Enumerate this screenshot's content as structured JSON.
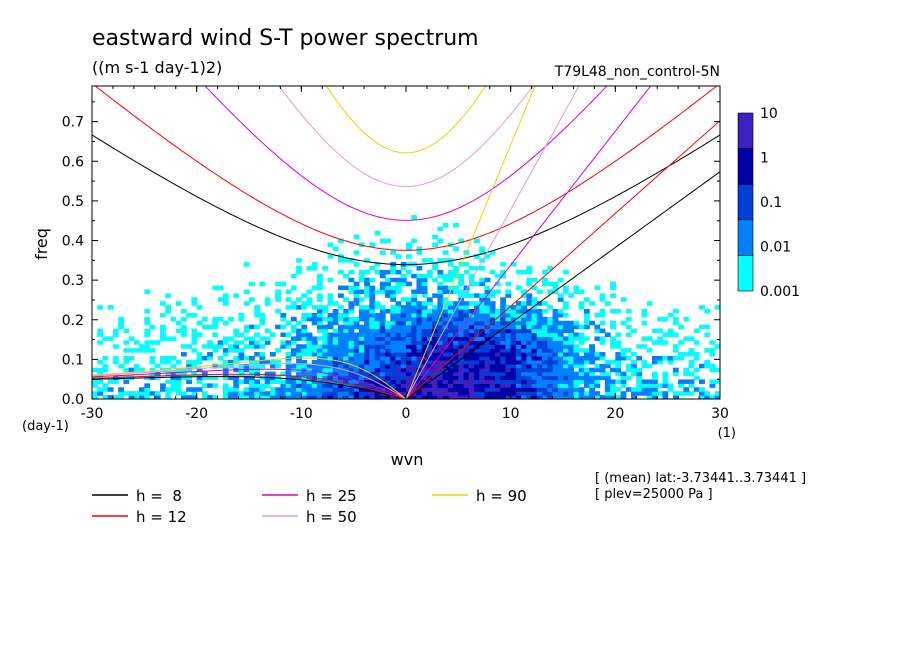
{
  "chart_data": {
    "type": "heatmap",
    "title": "eastward wind S-T power spectrum",
    "subtitle": "((m s-1 day-1)2)",
    "run_label": "T79L48_non_control-5N",
    "xlabel": "wvn",
    "xunit": "(1)",
    "ylabel": "freq",
    "yunit": "(day-1)",
    "xlim": [
      -30,
      30
    ],
    "ylim": [
      0,
      0.79
    ],
    "x_ticks": [
      -30,
      -20,
      -10,
      0,
      10,
      20,
      30
    ],
    "x_tick_labels": [
      "-30",
      "-20",
      "-10",
      "0",
      "10",
      "20",
      "30"
    ],
    "y_ticks": [
      0,
      0.1,
      0.2,
      0.3,
      0.4,
      0.5,
      0.6,
      0.7
    ],
    "y_tick_labels": [
      "0.0",
      "0.1",
      "0.2",
      "0.3",
      "0.4",
      "0.5",
      "0.6",
      "0.7"
    ],
    "colorbar": {
      "labels": [
        "10",
        "1",
        "0.1",
        "0.01",
        "0.001"
      ],
      "levels": [
        0.001,
        0.01,
        0.1,
        1,
        10
      ],
      "colors": [
        "#00ffff",
        "#0080ff",
        "#0040d8",
        "#0000a8",
        "#4020c0"
      ]
    },
    "dispersion_curves": [
      {
        "label": "h =  8",
        "h": 8,
        "color": "#000000"
      },
      {
        "label": "h = 12",
        "h": 12,
        "color": "#ff0000"
      },
      {
        "label": "h = 25",
        "h": 25,
        "color": "#e000c0"
      },
      {
        "label": "h = 50",
        "h": 50,
        "color": "#e09ae0"
      },
      {
        "label": "h = 90",
        "h": 90,
        "color": "#f0d000"
      }
    ],
    "annotations": [
      "[ (mean) lat:-3.73441..3.73441 ]",
      "[ plev=25000 Pa ]"
    ]
  }
}
